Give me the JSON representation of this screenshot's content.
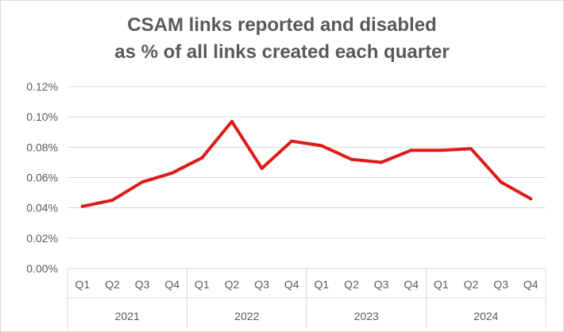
{
  "chart_data": {
    "type": "line",
    "title_lines": [
      "CSAM links reported and disabled",
      "as % of all links created each quarter"
    ],
    "x": [
      "Q1",
      "Q2",
      "Q3",
      "Q4",
      "Q1",
      "Q2",
      "Q3",
      "Q4",
      "Q1",
      "Q2",
      "Q3",
      "Q4",
      "Q1",
      "Q2",
      "Q3",
      "Q4"
    ],
    "x_groups": [
      {
        "label": "2021",
        "count": 4
      },
      {
        "label": "2022",
        "count": 4
      },
      {
        "label": "2023",
        "count": 4
      },
      {
        "label": "2024",
        "count": 4
      }
    ],
    "series": [
      {
        "values": [
          0.041,
          0.045,
          0.057,
          0.063,
          0.073,
          0.097,
          0.066,
          0.084,
          0.081,
          0.072,
          0.07,
          0.078,
          0.078,
          0.079,
          0.057,
          0.046
        ],
        "color": "#dd1c1a"
      }
    ],
    "ylim": [
      0,
      0.12
    ],
    "y_ticks": [
      0,
      0.02,
      0.04,
      0.06,
      0.08,
      0.1,
      0.12
    ],
    "y_tick_labels": [
      "0.00%",
      "0.02%",
      "0.04%",
      "0.06%",
      "0.08%",
      "0.10%",
      "0.12%"
    ],
    "grid": true,
    "legend": "none"
  }
}
